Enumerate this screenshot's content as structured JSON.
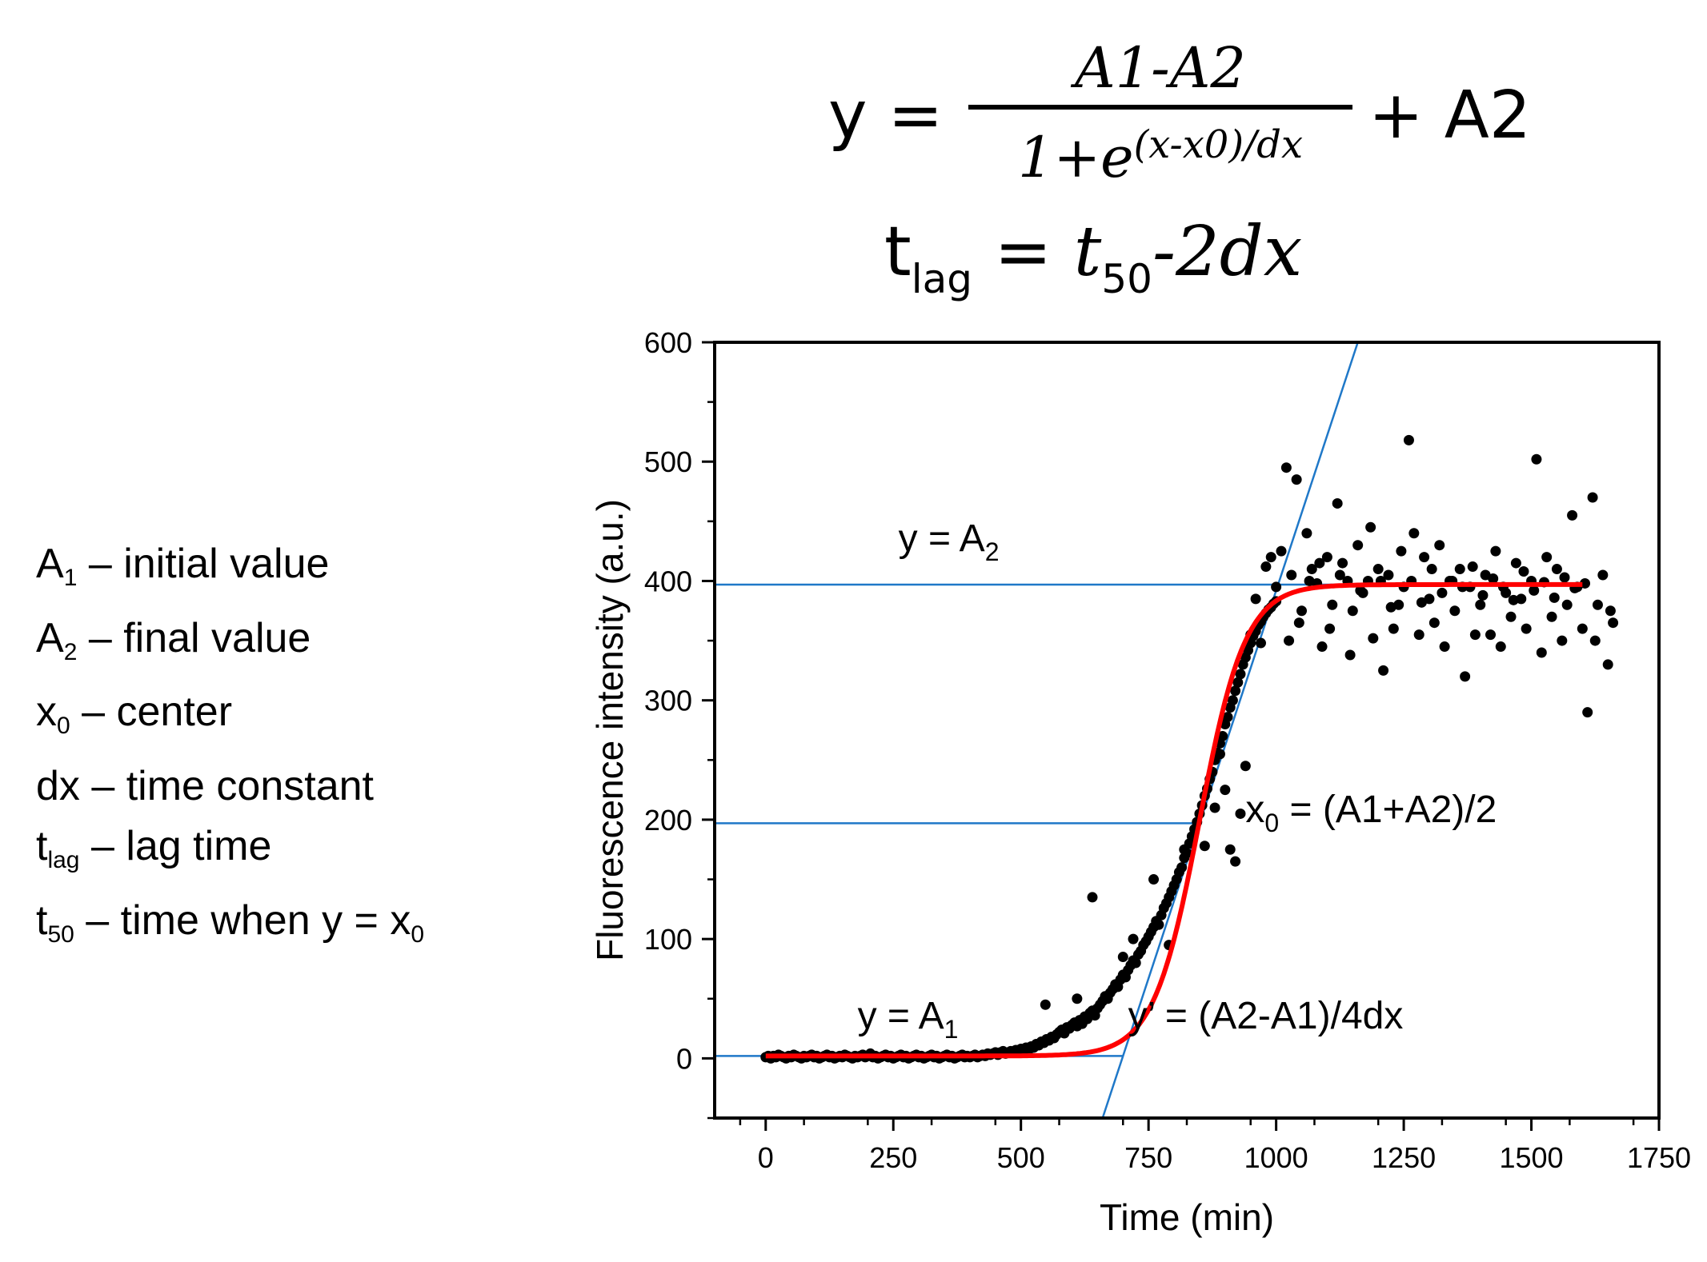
{
  "formulas": {
    "sigmoid": {
      "lhs": "y =",
      "numerator": "A1-A2",
      "denominator_base": "1+e",
      "denominator_exponent": "(x-x0)/dx",
      "tail": "+ A2"
    },
    "lag": {
      "lhs": "t",
      "lhs_sub": "lag",
      "eq": "=",
      "rhs": "t",
      "rhs_sub": "50",
      "rhs_tail": "-2dx"
    }
  },
  "legend": [
    {
      "sym": "A",
      "sub": "1",
      "desc": " – initial value"
    },
    {
      "sym": "A",
      "sub": "2",
      "desc": " – final value"
    },
    {
      "sym": "x",
      "sub": "0",
      "desc": " – center"
    },
    {
      "sym": "dx",
      "sub": "",
      "desc": " – time constant"
    },
    {
      "sym": "t",
      "sub": "lag",
      "desc": " – lag time"
    },
    {
      "sym": "t",
      "sub": "50",
      "desc": " – time when y = x",
      "tail_sub": "0"
    }
  ],
  "colors": {
    "fit": "#ff0000",
    "guide": "#1f78c8",
    "points": "#000000"
  },
  "chart_data": {
    "type": "scatter",
    "xlabel": "Time (min)",
    "ylabel": "Fluorescence intensity (a.u.)",
    "xlim": [
      -100,
      1750
    ],
    "ylim": [
      -50,
      600
    ],
    "xticks": [
      0,
      250,
      500,
      750,
      1000,
      1250,
      1500,
      1750
    ],
    "yticks": [
      0,
      100,
      200,
      300,
      400,
      500,
      600
    ],
    "fit": {
      "A1": 2,
      "A2": 397,
      "x0": 850,
      "dx": 45,
      "x_range": [
        0,
        1600
      ]
    },
    "hlines": [
      {
        "y": 2,
        "x_range": [
          -100,
          700
        ]
      },
      {
        "y": 197,
        "x_range": [
          -100,
          850
        ]
      },
      {
        "y": 397,
        "x_range": [
          -100,
          1600
        ]
      }
    ],
    "tangent": {
      "x_range": [
        660,
        1160
      ],
      "y_range": [
        -50,
        600
      ]
    },
    "annotations": [
      {
        "text": "y = A",
        "sub": "2",
        "tail": "",
        "x": 260,
        "y": 425
      },
      {
        "text": "x",
        "sub": "0",
        "tail": " = (A1+A2)/2",
        "x": 940,
        "y": 198
      },
      {
        "text": "y = A",
        "sub": "1",
        "tail": "",
        "x": 180,
        "y": 25
      },
      {
        "text": "y’ = (A2-A1)/4dx",
        "sub": "",
        "tail": "",
        "x": 710,
        "y": 25
      }
    ],
    "scatter_points": [
      [
        0,
        1
      ],
      [
        5,
        2
      ],
      [
        10,
        0
      ],
      [
        15,
        2
      ],
      [
        20,
        1
      ],
      [
        25,
        3
      ],
      [
        30,
        2
      ],
      [
        35,
        1
      ],
      [
        40,
        0
      ],
      [
        45,
        2
      ],
      [
        50,
        1
      ],
      [
        55,
        3
      ],
      [
        60,
        2
      ],
      [
        65,
        1
      ],
      [
        70,
        0
      ],
      [
        75,
        2
      ],
      [
        80,
        1
      ],
      [
        85,
        2
      ],
      [
        90,
        3
      ],
      [
        95,
        1
      ],
      [
        100,
        2
      ],
      [
        105,
        0
      ],
      [
        110,
        1
      ],
      [
        115,
        2
      ],
      [
        120,
        3
      ],
      [
        125,
        1
      ],
      [
        130,
        2
      ],
      [
        135,
        0
      ],
      [
        140,
        1
      ],
      [
        145,
        2
      ],
      [
        150,
        1
      ],
      [
        155,
        3
      ],
      [
        160,
        2
      ],
      [
        165,
        1
      ],
      [
        170,
        0
      ],
      [
        175,
        2
      ],
      [
        180,
        1
      ],
      [
        185,
        2
      ],
      [
        190,
        3
      ],
      [
        195,
        1
      ],
      [
        200,
        2
      ],
      [
        205,
        4
      ],
      [
        210,
        1
      ],
      [
        215,
        2
      ],
      [
        220,
        0
      ],
      [
        225,
        1
      ],
      [
        230,
        2
      ],
      [
        235,
        3
      ],
      [
        240,
        1
      ],
      [
        245,
        2
      ],
      [
        250,
        0
      ],
      [
        255,
        1
      ],
      [
        260,
        2
      ],
      [
        265,
        3
      ],
      [
        270,
        1
      ],
      [
        275,
        2
      ],
      [
        280,
        0
      ],
      [
        285,
        1
      ],
      [
        290,
        2
      ],
      [
        295,
        3
      ],
      [
        300,
        1
      ],
      [
        305,
        2
      ],
      [
        310,
        0
      ],
      [
        315,
        1
      ],
      [
        320,
        2
      ],
      [
        325,
        3
      ],
      [
        330,
        1
      ],
      [
        335,
        2
      ],
      [
        340,
        0
      ],
      [
        345,
        1
      ],
      [
        350,
        2
      ],
      [
        355,
        3
      ],
      [
        360,
        1
      ],
      [
        365,
        2
      ],
      [
        370,
        0
      ],
      [
        375,
        1
      ],
      [
        380,
        2
      ],
      [
        385,
        3
      ],
      [
        390,
        1
      ],
      [
        395,
        2
      ],
      [
        400,
        1
      ],
      [
        405,
        2
      ],
      [
        410,
        3
      ],
      [
        415,
        1
      ],
      [
        420,
        2
      ],
      [
        425,
        3
      ],
      [
        430,
        2
      ],
      [
        435,
        4
      ],
      [
        440,
        3
      ],
      [
        445,
        4
      ],
      [
        450,
        5
      ],
      [
        455,
        3
      ],
      [
        460,
        5
      ],
      [
        465,
        6
      ],
      [
        470,
        4
      ],
      [
        475,
        5
      ],
      [
        480,
        6
      ],
      [
        485,
        5
      ],
      [
        490,
        7
      ],
      [
        495,
        6
      ],
      [
        500,
        8
      ],
      [
        505,
        6
      ],
      [
        510,
        9
      ],
      [
        515,
        7
      ],
      [
        520,
        10
      ],
      [
        525,
        9
      ],
      [
        530,
        12
      ],
      [
        535,
        11
      ],
      [
        540,
        14
      ],
      [
        545,
        13
      ],
      [
        550,
        16
      ],
      [
        555,
        15
      ],
      [
        560,
        18
      ],
      [
        565,
        17
      ],
      [
        570,
        20
      ],
      [
        575,
        22
      ],
      [
        580,
        24
      ],
      [
        585,
        21
      ],
      [
        590,
        26
      ],
      [
        595,
        25
      ],
      [
        600,
        28
      ],
      [
        605,
        30
      ],
      [
        610,
        27
      ],
      [
        615,
        32
      ],
      [
        620,
        29
      ],
      [
        625,
        35
      ],
      [
        630,
        33
      ],
      [
        635,
        38
      ],
      [
        640,
        40
      ],
      [
        645,
        36
      ],
      [
        650,
        42
      ],
      [
        655,
        45
      ],
      [
        660,
        48
      ],
      [
        665,
        52
      ],
      [
        670,
        50
      ],
      [
        675,
        55
      ],
      [
        680,
        58
      ],
      [
        685,
        62
      ],
      [
        690,
        60
      ],
      [
        695,
        66
      ],
      [
        700,
        70
      ],
      [
        705,
        68
      ],
      [
        710,
        74
      ],
      [
        715,
        78
      ],
      [
        720,
        82
      ],
      [
        725,
        80
      ],
      [
        730,
        87
      ],
      [
        735,
        90
      ],
      [
        740,
        95
      ],
      [
        745,
        98
      ],
      [
        750,
        102
      ],
      [
        755,
        106
      ],
      [
        760,
        110
      ],
      [
        765,
        115
      ],
      [
        770,
        112
      ],
      [
        775,
        120
      ],
      [
        780,
        126
      ],
      [
        785,
        130
      ],
      [
        790,
        135
      ],
      [
        795,
        140
      ],
      [
        800,
        145
      ],
      [
        805,
        150
      ],
      [
        810,
        156
      ],
      [
        815,
        160
      ],
      [
        820,
        168
      ],
      [
        825,
        172
      ],
      [
        830,
        180
      ],
      [
        835,
        186
      ],
      [
        840,
        192
      ],
      [
        845,
        198
      ],
      [
        850,
        205
      ],
      [
        855,
        212
      ],
      [
        860,
        220
      ],
      [
        865,
        226
      ],
      [
        870,
        234
      ],
      [
        875,
        240
      ],
      [
        880,
        250
      ],
      [
        885,
        256
      ],
      [
        890,
        264
      ],
      [
        895,
        270
      ],
      [
        900,
        280
      ],
      [
        905,
        286
      ],
      [
        910,
        294
      ],
      [
        915,
        300
      ],
      [
        920,
        308
      ],
      [
        925,
        315
      ],
      [
        930,
        322
      ],
      [
        935,
        330
      ],
      [
        940,
        336
      ],
      [
        945,
        342
      ],
      [
        950,
        348
      ],
      [
        955,
        354
      ],
      [
        960,
        358
      ],
      [
        965,
        363
      ],
      [
        970,
        366
      ],
      [
        975,
        370
      ],
      [
        980,
        373
      ],
      [
        985,
        376
      ],
      [
        990,
        378
      ],
      [
        995,
        381
      ],
      [
        1000,
        383
      ],
      [
        548,
        45
      ],
      [
        610,
        50
      ],
      [
        640,
        135
      ],
      [
        700,
        85
      ],
      [
        720,
        100
      ],
      [
        760,
        150
      ],
      [
        790,
        95
      ],
      [
        820,
        175
      ],
      [
        860,
        178
      ],
      [
        880,
        210
      ],
      [
        890,
        255
      ],
      [
        900,
        225
      ],
      [
        910,
        175
      ],
      [
        920,
        165
      ],
      [
        930,
        205
      ],
      [
        940,
        245
      ],
      [
        950,
        355
      ],
      [
        960,
        385
      ],
      [
        970,
        348
      ],
      [
        980,
        412
      ],
      [
        990,
        420
      ],
      [
        1000,
        395
      ],
      [
        1010,
        425
      ],
      [
        1020,
        495
      ],
      [
        1030,
        405
      ],
      [
        1040,
        485
      ],
      [
        1050,
        375
      ],
      [
        1060,
        440
      ],
      [
        1070,
        410
      ],
      [
        1080,
        398
      ],
      [
        1090,
        345
      ],
      [
        1100,
        420
      ],
      [
        1110,
        380
      ],
      [
        1120,
        465
      ],
      [
        1130,
        415
      ],
      [
        1140,
        400
      ],
      [
        1150,
        375
      ],
      [
        1160,
        430
      ],
      [
        1170,
        390
      ],
      [
        1180,
        400
      ],
      [
        1190,
        352
      ],
      [
        1200,
        410
      ],
      [
        1210,
        325
      ],
      [
        1220,
        405
      ],
      [
        1230,
        360
      ],
      [
        1240,
        380
      ],
      [
        1250,
        395
      ],
      [
        1260,
        518
      ],
      [
        1270,
        440
      ],
      [
        1280,
        355
      ],
      [
        1290,
        420
      ],
      [
        1300,
        385
      ],
      [
        1310,
        365
      ],
      [
        1320,
        430
      ],
      [
        1330,
        345
      ],
      [
        1340,
        400
      ],
      [
        1350,
        375
      ],
      [
        1360,
        410
      ],
      [
        1370,
        320
      ],
      [
        1380,
        395
      ],
      [
        1390,
        355
      ],
      [
        1400,
        380
      ],
      [
        1410,
        405
      ],
      [
        1420,
        355
      ],
      [
        1430,
        425
      ],
      [
        1440,
        345
      ],
      [
        1450,
        390
      ],
      [
        1460,
        370
      ],
      [
        1470,
        415
      ],
      [
        1480,
        385
      ],
      [
        1490,
        360
      ],
      [
        1500,
        400
      ],
      [
        1510,
        502
      ],
      [
        1520,
        340
      ],
      [
        1530,
        420
      ],
      [
        1540,
        370
      ],
      [
        1550,
        410
      ],
      [
        1560,
        350
      ],
      [
        1570,
        380
      ],
      [
        1580,
        455
      ],
      [
        1590,
        395
      ],
      [
        1600,
        360
      ],
      [
        1610,
        290
      ],
      [
        1620,
        470
      ],
      [
        1625,
        350
      ],
      [
        1630,
        380
      ],
      [
        1640,
        405
      ],
      [
        1650,
        330
      ],
      [
        1655,
        375
      ],
      [
        1660,
        365
      ],
      [
        1025,
        350
      ],
      [
        1045,
        365
      ],
      [
        1065,
        400
      ],
      [
        1085,
        415
      ],
      [
        1105,
        360
      ],
      [
        1125,
        405
      ],
      [
        1145,
        338
      ],
      [
        1165,
        392
      ],
      [
        1185,
        445
      ],
      [
        1205,
        400
      ],
      [
        1225,
        378
      ],
      [
        1245,
        425
      ],
      [
        1265,
        400
      ],
      [
        1285,
        382
      ],
      [
        1305,
        410
      ],
      [
        1325,
        390
      ],
      [
        1345,
        400
      ],
      [
        1365,
        395
      ],
      [
        1385,
        412
      ],
      [
        1405,
        388
      ],
      [
        1425,
        402
      ],
      [
        1445,
        395
      ],
      [
        1465,
        384
      ],
      [
        1485,
        408
      ],
      [
        1505,
        392
      ],
      [
        1525,
        399
      ],
      [
        1545,
        386
      ],
      [
        1565,
        403
      ],
      [
        1585,
        394
      ],
      [
        1605,
        398
      ]
    ]
  }
}
